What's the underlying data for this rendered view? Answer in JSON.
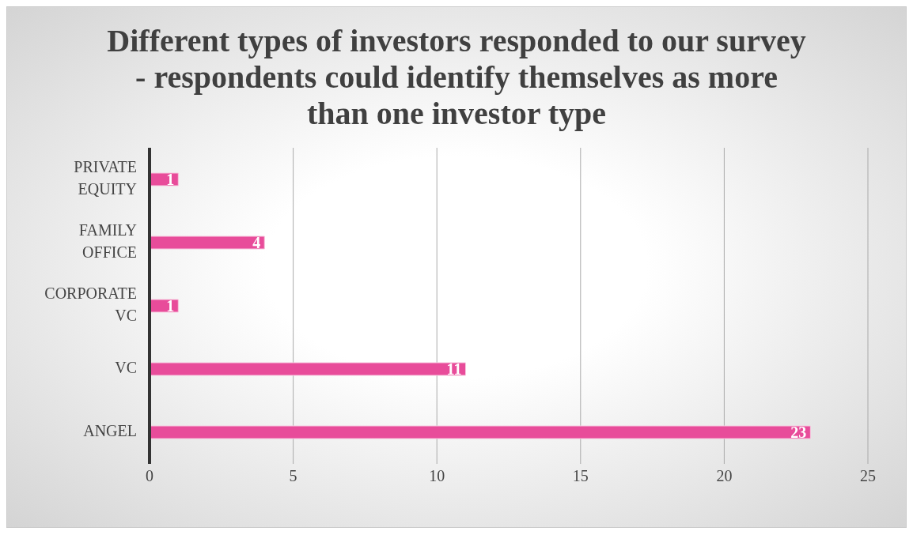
{
  "chart_data": {
    "type": "bar",
    "title": "Different types of investors responded to our survey - respondents could identify themselves as more than one investor type",
    "orientation": "horizontal",
    "categories": [
      "PRIVATE EQUITY",
      "FAMILY OFFICE",
      "CORPORATE VC",
      "VC",
      "ANGEL"
    ],
    "values": [
      1,
      4,
      1,
      11,
      23
    ],
    "color": "#e84c9a",
    "xlim": [
      0,
      25
    ],
    "xticks": [
      0,
      5,
      10,
      15,
      20,
      25
    ],
    "grid": "x",
    "data_labels": true
  }
}
